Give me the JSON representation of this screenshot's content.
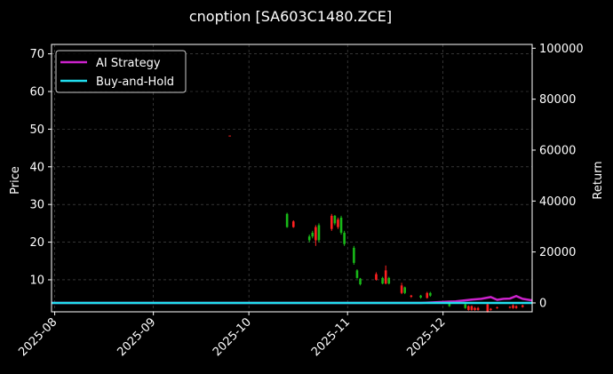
{
  "chart_data": {
    "type": "candlestick",
    "title": "cnoption [SA603C1480.ZCE]",
    "xlabel": "",
    "ylabel": "Price",
    "ylabel_right": "Return",
    "grid": true,
    "legend_position": "top-left",
    "x_range": [
      "2025-07-31",
      "2025-12-29"
    ],
    "x_ticks": [
      "2025-08",
      "2025-09",
      "2025-10",
      "2025-11",
      "2025-12"
    ],
    "x_tick_dates": [
      "2025-08-01",
      "2025-09-01",
      "2025-10-01",
      "2025-11-01",
      "2025-12-01"
    ],
    "y_left": {
      "min": 1.5,
      "max": 72.5,
      "ticks": [
        10,
        20,
        30,
        40,
        50,
        60,
        70
      ]
    },
    "y_right": {
      "min": -3500,
      "max": 101500,
      "ticks": [
        0,
        20000,
        40000,
        60000,
        80000,
        100000
      ]
    },
    "colors": {
      "up": "#ff2020",
      "down": "#18b818",
      "ai_strategy": "#cc22cc",
      "buy_and_hold": "#22ddee",
      "background": "#000000",
      "text": "#ffffff"
    },
    "candles": [
      {
        "date": "2025-09-25",
        "open": 48.3,
        "close": 48.3,
        "high": 48.3,
        "low": 48.3
      },
      {
        "date": "2025-10-13",
        "open": 27.5,
        "close": 24.0,
        "high": 27.8,
        "low": 23.8
      },
      {
        "date": "2025-10-15",
        "open": 24.0,
        "close": 25.5,
        "high": 25.8,
        "low": 23.8
      },
      {
        "date": "2025-10-20",
        "open": 21.5,
        "close": 20.5,
        "high": 22.0,
        "low": 20.0
      },
      {
        "date": "2025-10-21",
        "open": 22.5,
        "close": 21.5,
        "high": 23.0,
        "low": 21.0
      },
      {
        "date": "2025-10-22",
        "open": 20.5,
        "close": 24.0,
        "high": 24.5,
        "low": 19.0
      },
      {
        "date": "2025-10-23",
        "open": 24.5,
        "close": 20.5,
        "high": 25.0,
        "low": 20.0
      },
      {
        "date": "2025-10-27",
        "open": 23.5,
        "close": 27.0,
        "high": 27.5,
        "low": 23.0
      },
      {
        "date": "2025-10-28",
        "open": 27.0,
        "close": 25.0,
        "high": 27.2,
        "low": 24.5
      },
      {
        "date": "2025-10-29",
        "open": 24.0,
        "close": 26.0,
        "high": 26.5,
        "low": 23.5
      },
      {
        "date": "2025-10-30",
        "open": 26.5,
        "close": 22.5,
        "high": 27.0,
        "low": 22.0
      },
      {
        "date": "2025-10-31",
        "open": 22.5,
        "close": 19.5,
        "high": 23.0,
        "low": 19.0
      },
      {
        "date": "2025-11-03",
        "open": 18.5,
        "close": 14.5,
        "high": 19.0,
        "low": 14.0
      },
      {
        "date": "2025-11-04",
        "open": 12.5,
        "close": 10.5,
        "high": 12.8,
        "low": 10.3
      },
      {
        "date": "2025-11-05",
        "open": 10.3,
        "close": 8.8,
        "high": 10.5,
        "low": 8.5
      },
      {
        "date": "2025-11-10",
        "open": 10.0,
        "close": 11.5,
        "high": 12.0,
        "low": 9.8
      },
      {
        "date": "2025-11-12",
        "open": 10.5,
        "close": 9.0,
        "high": 10.8,
        "low": 8.8
      },
      {
        "date": "2025-11-13",
        "open": 9.0,
        "close": 12.5,
        "high": 13.8,
        "low": 8.8
      },
      {
        "date": "2025-11-14",
        "open": 10.5,
        "close": 9.0,
        "high": 10.8,
        "low": 8.8
      },
      {
        "date": "2025-11-18",
        "open": 6.5,
        "close": 8.5,
        "high": 9.2,
        "low": 6.2
      },
      {
        "date": "2025-11-19",
        "open": 8.0,
        "close": 6.5,
        "high": 8.2,
        "low": 6.2
      },
      {
        "date": "2025-11-21",
        "open": 5.5,
        "close": 5.8,
        "high": 6.0,
        "low": 5.2
      },
      {
        "date": "2025-11-24",
        "open": 5.8,
        "close": 5.3,
        "high": 6.0,
        "low": 5.0
      },
      {
        "date": "2025-11-26",
        "open": 5.2,
        "close": 6.5,
        "high": 6.8,
        "low": 5.0
      },
      {
        "date": "2025-11-27",
        "open": 6.5,
        "close": 5.8,
        "high": 6.8,
        "low": 5.5
      },
      {
        "date": "2025-12-03",
        "open": 4.0,
        "close": 3.0,
        "high": 4.2,
        "low": 2.8
      },
      {
        "date": "2025-12-08",
        "open": 3.5,
        "close": 2.5,
        "high": 3.8,
        "low": 2.3
      },
      {
        "date": "2025-12-09",
        "open": 2.0,
        "close": 3.0,
        "high": 3.2,
        "low": 1.8
      },
      {
        "date": "2025-12-10",
        "open": 2.0,
        "close": 3.0,
        "high": 3.2,
        "low": 1.8
      },
      {
        "date": "2025-12-11",
        "open": 2.0,
        "close": 2.5,
        "high": 2.8,
        "low": 1.8
      },
      {
        "date": "2025-12-12",
        "open": 2.0,
        "close": 2.5,
        "high": 2.8,
        "low": 1.8
      },
      {
        "date": "2025-12-15",
        "open": 1.5,
        "close": 3.5,
        "high": 3.8,
        "low": 1.3
      },
      {
        "date": "2025-12-16",
        "open": 2.0,
        "close": 2.3,
        "high": 2.5,
        "low": 1.8
      },
      {
        "date": "2025-12-18",
        "open": 2.5,
        "close": 2.7,
        "high": 2.9,
        "low": 2.3
      },
      {
        "date": "2025-12-22",
        "open": 2.6,
        "close": 2.8,
        "high": 3.0,
        "low": 2.4
      },
      {
        "date": "2025-12-23",
        "open": 2.5,
        "close": 3.2,
        "high": 3.5,
        "low": 2.3
      },
      {
        "date": "2025-12-24",
        "open": 2.5,
        "close": 3.0,
        "high": 3.2,
        "low": 2.3
      },
      {
        "date": "2025-12-26",
        "open": 2.8,
        "close": 3.2,
        "high": 3.4,
        "low": 2.6
      }
    ],
    "series": [
      {
        "name": "AI Strategy",
        "points": [
          {
            "x": "2025-07-31",
            "y": 0
          },
          {
            "x": "2025-11-24",
            "y": 0
          },
          {
            "x": "2025-11-28",
            "y": 200
          },
          {
            "x": "2025-12-05",
            "y": 600
          },
          {
            "x": "2025-12-10",
            "y": 1300
          },
          {
            "x": "2025-12-13",
            "y": 1600
          },
          {
            "x": "2025-12-16",
            "y": 2300
          },
          {
            "x": "2025-12-18",
            "y": 1200
          },
          {
            "x": "2025-12-20",
            "y": 1600
          },
          {
            "x": "2025-12-22",
            "y": 1700
          },
          {
            "x": "2025-12-24",
            "y": 2700
          },
          {
            "x": "2025-12-26",
            "y": 1600
          },
          {
            "x": "2025-12-29",
            "y": 1000
          }
        ]
      },
      {
        "name": "Buy-and-Hold",
        "points": [
          {
            "x": "2025-07-31",
            "y": 0
          },
          {
            "x": "2025-12-29",
            "y": 0
          }
        ]
      }
    ]
  }
}
